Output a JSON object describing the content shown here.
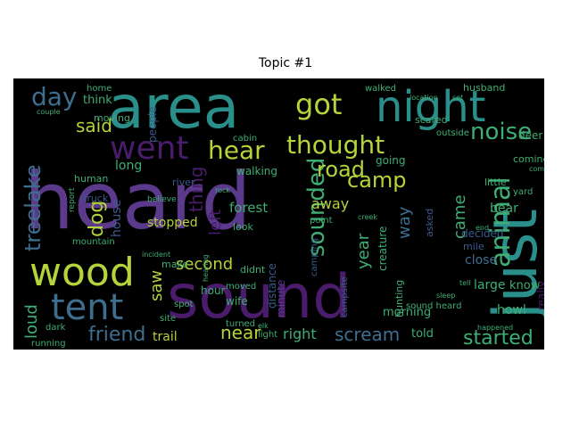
{
  "title": "Topic #1",
  "palette": {
    "purple": "#5b3a8c",
    "deep_purple": "#4a1c6b",
    "teal": "#2a8f8a",
    "green": "#3fae74",
    "lime": "#b5d33a",
    "blue": "#3a5b8c",
    "steel": "#3e6e8e"
  },
  "words": [
    {
      "text": "heard",
      "color": "purple"
    },
    {
      "text": "sound",
      "color": "deep_purple"
    },
    {
      "text": "area",
      "color": "teal"
    },
    {
      "text": "just",
      "color": "teal"
    },
    {
      "text": "night",
      "color": "teal"
    },
    {
      "text": "wood",
      "color": "lime"
    },
    {
      "text": "tent",
      "color": "steel"
    },
    {
      "text": "went",
      "color": "deep_purple"
    },
    {
      "text": "got",
      "color": "lime"
    },
    {
      "text": "thought",
      "color": "lime"
    },
    {
      "text": "day",
      "color": "steel"
    },
    {
      "text": "hear",
      "color": "lime"
    },
    {
      "text": "noise",
      "color": "green"
    },
    {
      "text": "animal",
      "color": "green"
    },
    {
      "text": "treelake",
      "color": "steel"
    },
    {
      "text": "sounded",
      "color": "green"
    },
    {
      "text": "camp",
      "color": "lime"
    },
    {
      "text": "road",
      "color": "lime"
    },
    {
      "text": "thing",
      "color": "deep_purple"
    },
    {
      "text": "said",
      "color": "lime"
    },
    {
      "text": "dog",
      "color": "lime"
    },
    {
      "text": "friend",
      "color": "steel"
    },
    {
      "text": "scream",
      "color": "steel"
    },
    {
      "text": "started",
      "color": "green"
    },
    {
      "text": "loud",
      "color": "green"
    },
    {
      "text": "second",
      "color": "lime"
    },
    {
      "text": "saw",
      "color": "lime"
    },
    {
      "text": "near",
      "color": "lime"
    },
    {
      "text": "right",
      "color": "green"
    },
    {
      "text": "left",
      "color": "deep_purple"
    },
    {
      "text": "year",
      "color": "green"
    },
    {
      "text": "way",
      "color": "steel"
    },
    {
      "text": "came",
      "color": "green"
    },
    {
      "text": "close",
      "color": "steel"
    },
    {
      "text": "away",
      "color": "lime"
    },
    {
      "text": "stopped",
      "color": "lime"
    },
    {
      "text": "trail",
      "color": "lime"
    },
    {
      "text": "forest",
      "color": "green"
    },
    {
      "text": "large",
      "color": "green"
    },
    {
      "text": "know",
      "color": "green"
    },
    {
      "text": "howl",
      "color": "green"
    },
    {
      "text": "told",
      "color": "green"
    },
    {
      "text": "morning",
      "color": "green"
    },
    {
      "text": "bear",
      "color": "green"
    },
    {
      "text": "long",
      "color": "green"
    },
    {
      "text": "house",
      "color": "blue"
    },
    {
      "text": "minute",
      "color": "purple"
    },
    {
      "text": "decided",
      "color": "blue"
    },
    {
      "text": "really",
      "color": "deep_purple"
    },
    {
      "text": "walking",
      "color": "green"
    },
    {
      "text": "hour",
      "color": "green"
    },
    {
      "text": "wife",
      "color": "green"
    },
    {
      "text": "didnt",
      "color": "green"
    },
    {
      "text": "truck",
      "color": "blue"
    },
    {
      "text": "river",
      "color": "blue"
    },
    {
      "text": "going",
      "color": "green"
    },
    {
      "text": "creature",
      "color": "green"
    },
    {
      "text": "hunting",
      "color": "green"
    },
    {
      "text": "sound heard",
      "color": "green"
    },
    {
      "text": "campsite",
      "color": "blue"
    },
    {
      "text": "distance",
      "color": "blue"
    },
    {
      "text": "deer",
      "color": "green"
    },
    {
      "text": "scared",
      "color": "green"
    },
    {
      "text": "outside",
      "color": "green"
    },
    {
      "text": "little",
      "color": "green"
    },
    {
      "text": "yard",
      "color": "green"
    },
    {
      "text": "mile",
      "color": "blue"
    },
    {
      "text": "asked",
      "color": "blue"
    },
    {
      "text": "make",
      "color": "green"
    },
    {
      "text": "moved",
      "color": "green"
    },
    {
      "text": "light",
      "color": "green"
    },
    {
      "text": "look",
      "color": "green"
    },
    {
      "text": "point",
      "color": "green"
    },
    {
      "text": "camping",
      "color": "blue"
    },
    {
      "text": "think",
      "color": "green"
    },
    {
      "text": "moving",
      "color": "green"
    },
    {
      "text": "people",
      "color": "blue"
    },
    {
      "text": "human",
      "color": "green"
    },
    {
      "text": "mountain",
      "color": "green"
    },
    {
      "text": "dark",
      "color": "green"
    },
    {
      "text": "site",
      "color": "green"
    },
    {
      "text": "spot",
      "color": "green"
    },
    {
      "text": "running",
      "color": "green"
    },
    {
      "text": "home",
      "color": "green"
    },
    {
      "text": "coming",
      "color": "green"
    },
    {
      "text": "husband",
      "color": "green"
    },
    {
      "text": "walked",
      "color": "green"
    },
    {
      "text": "cabin",
      "color": "green"
    },
    {
      "text": "turned",
      "color": "green"
    },
    {
      "text": "believe",
      "color": "green"
    },
    {
      "text": "incident",
      "color": "green"
    },
    {
      "text": "hearing",
      "color": "green"
    },
    {
      "text": "elk",
      "color": "green"
    },
    {
      "text": "couple",
      "color": "green"
    },
    {
      "text": "report",
      "color": "green"
    },
    {
      "text": "rock",
      "color": "green"
    },
    {
      "text": "creek",
      "color": "green"
    },
    {
      "text": "end",
      "color": "green"
    },
    {
      "text": "come",
      "color": "green"
    },
    {
      "text": "location",
      "color": "green"
    },
    {
      "text": "set",
      "color": "green"
    },
    {
      "text": "tell",
      "color": "green"
    },
    {
      "text": "happened",
      "color": "green"
    },
    {
      "text": "sleep",
      "color": "green"
    }
  ]
}
